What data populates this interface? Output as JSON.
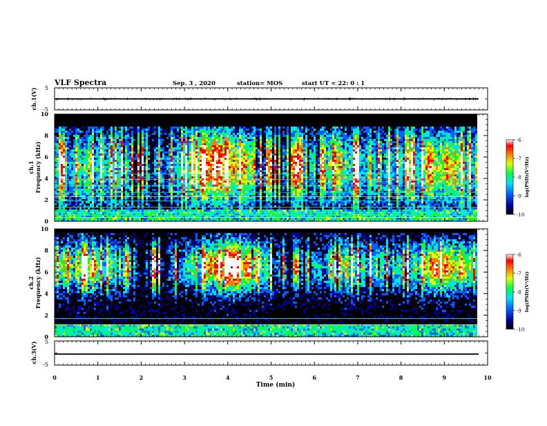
{
  "header": {
    "title": "VLF Spectra",
    "date": "Sep. 3 , 2020",
    "station": "station= MOS",
    "start": "start UT = 22: 0 : 1"
  },
  "chart_data": [
    {
      "type": "line",
      "panel": "ch1-voltage",
      "ylabel": "ch.1(V)",
      "ylim": [
        -5,
        5
      ],
      "yticks": [
        "5",
        "-5"
      ],
      "x": [
        0,
        9.83
      ],
      "values": [
        0.0,
        0.0
      ],
      "color": "#000000"
    },
    {
      "type": "heatmap",
      "panel": "ch1-spectrogram",
      "ylabel": "ch.1\nFrequency (kHz)",
      "ylim": [
        0,
        10
      ],
      "yticks": [
        "0",
        "2",
        "4",
        "6",
        "8",
        "10"
      ],
      "xlim": [
        0,
        9.83
      ],
      "colorbar": {
        "label": "log(PSD)(V²/Hz)",
        "ticks": [
          "-6",
          "-7",
          "-8",
          "-9",
          "-10"
        ],
        "range": [
          -10,
          -6
        ]
      }
    },
    {
      "type": "heatmap",
      "panel": "ch2-spectrogram",
      "ylabel": "ch.2\nFrequency (kHz)",
      "ylim": [
        0,
        10
      ],
      "yticks": [
        "0",
        "2",
        "4",
        "6",
        "8",
        "10"
      ],
      "xlim": [
        0,
        9.83
      ],
      "colorbar": {
        "label": "log(PSD)(V²/Hz)",
        "ticks": [
          "-6",
          "-7",
          "-8",
          "-9",
          "-10"
        ],
        "range": [
          -10,
          -6
        ]
      }
    },
    {
      "type": "line",
      "panel": "ch3-voltage",
      "ylabel": "ch.3(V)",
      "ylim": [
        -5,
        5
      ],
      "yticks": [
        "5",
        "-5"
      ],
      "x": [
        0,
        9.83
      ],
      "values": [
        -1.0,
        -1.0
      ],
      "color": "#000000"
    }
  ],
  "xaxis": {
    "label": "Time (min)",
    "ticks": [
      "0",
      "1",
      "2",
      "3",
      "4",
      "5",
      "6",
      "7",
      "8",
      "9",
      "10"
    ],
    "xlim": [
      0,
      10
    ]
  },
  "colors": {
    "background": "#ffffff",
    "axis": "#000000",
    "colormap": [
      "#000000",
      "#0000a0",
      "#0060ff",
      "#00e0ff",
      "#00ff40",
      "#e0ff00",
      "#ff8000",
      "#ff0000",
      "#ffffff"
    ]
  }
}
